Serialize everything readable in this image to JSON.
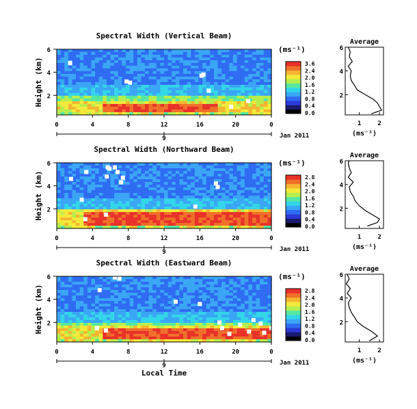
{
  "chart_data": {
    "type": "heatmap",
    "panels": [
      {
        "title": "Spectral Width (Vertical Beam)",
        "ylabel": "Height (km)",
        "ylim": [
          0.3,
          6
        ],
        "yticks": [
          "6",
          "4",
          "2"
        ],
        "ytick_values": [
          6,
          4,
          2
        ],
        "xticks": [
          "0",
          "4",
          "8",
          "12",
          "16",
          "20",
          "0"
        ],
        "xtick_values": [
          0,
          4,
          8,
          12,
          16,
          20,
          24
        ],
        "date_tick": "9",
        "date_label": "Jan 2011",
        "colorbar_unit": "(ms⁻¹)",
        "colorbar_ticks": [
          "3.6",
          "2.4",
          "2.0",
          "1.6",
          "1.2",
          "0.8",
          "0.4",
          "0.0"
        ],
        "avg_title": "Average",
        "avg_xticks": [
          "1",
          "2"
        ],
        "avg_xlabel": "(ms⁻¹)",
        "avg_yticks": [
          "6",
          "4",
          "2"
        ],
        "bright_band": {
          "start": 5,
          "end": 18,
          "height": 1.3
        },
        "gaps": [
          [
            1.5,
            4.8
          ],
          [
            7.8,
            3.2
          ],
          [
            8.2,
            3.1
          ],
          [
            16.2,
            3.7
          ],
          [
            16.4,
            3.8
          ],
          [
            17.0,
            2.4
          ],
          [
            19.5,
            1.0
          ],
          [
            21.4,
            1.5
          ]
        ],
        "average_profile": [
          {
            "h": 0.4,
            "v": 1.6
          },
          {
            "h": 0.7,
            "v": 2.1
          },
          {
            "h": 1.0,
            "v": 2.0
          },
          {
            "h": 1.3,
            "v": 1.9
          },
          {
            "h": 1.6,
            "v": 1.7
          },
          {
            "h": 2.0,
            "v": 1.3
          },
          {
            "h": 2.4,
            "v": 0.9
          },
          {
            "h": 2.8,
            "v": 0.75
          },
          {
            "h": 3.2,
            "v": 0.6
          },
          {
            "h": 3.6,
            "v": 0.55
          },
          {
            "h": 4.0,
            "v": 0.6
          },
          {
            "h": 4.4,
            "v": 0.45
          },
          {
            "h": 4.8,
            "v": 0.65
          },
          {
            "h": 5.2,
            "v": 0.5
          },
          {
            "h": 5.6,
            "v": 0.55
          },
          {
            "h": 6.0,
            "v": 0.45
          }
        ]
      },
      {
        "title": "Spectral Width (Northward Beam)",
        "ylabel": "Height (km)",
        "ylim": [
          0.3,
          6
        ],
        "yticks": [
          "6",
          "4",
          "2"
        ],
        "ytick_values": [
          6,
          4,
          2
        ],
        "xticks": [
          "0",
          "4",
          "8",
          "12",
          "16",
          "20",
          "0"
        ],
        "xtick_values": [
          0,
          4,
          8,
          12,
          16,
          20,
          24
        ],
        "date_tick": "9",
        "date_label": "Jan 2011",
        "colorbar_unit": "(ms⁻¹)",
        "colorbar_ticks": [
          "2.8",
          "2.4",
          "2.0",
          "1.6",
          "1.2",
          "0.8",
          "0.4",
          "0.0"
        ],
        "avg_title": "Average",
        "avg_xticks": [
          "1",
          "2"
        ],
        "avg_xlabel": "(ms⁻¹)",
        "avg_yticks": [
          "6",
          "4",
          "2"
        ],
        "bright_band": {
          "start": 3,
          "end": 24,
          "height": 1.7
        },
        "gaps": [
          [
            1.6,
            4.6
          ],
          [
            3.3,
            5.2
          ],
          [
            5.7,
            5.6
          ],
          [
            5.9,
            5.5
          ],
          [
            6.5,
            5.6
          ],
          [
            6.8,
            5.2
          ],
          [
            7.4,
            4.7
          ],
          [
            7.2,
            4.3
          ],
          [
            5.6,
            4.8
          ],
          [
            2.8,
            2.8
          ],
          [
            5.5,
            1.5
          ],
          [
            17.8,
            4.2
          ],
          [
            18.0,
            3.9
          ],
          [
            15.5,
            2.2
          ],
          [
            3.2,
            1.1
          ]
        ],
        "average_profile": [
          {
            "h": 0.5,
            "v": 1.4
          },
          {
            "h": 0.8,
            "v": 1.9
          },
          {
            "h": 1.1,
            "v": 2.0
          },
          {
            "h": 1.4,
            "v": 1.7
          },
          {
            "h": 1.8,
            "v": 1.3
          },
          {
            "h": 2.2,
            "v": 1.0
          },
          {
            "h": 2.6,
            "v": 0.8
          },
          {
            "h": 3.0,
            "v": 0.7
          },
          {
            "h": 3.4,
            "v": 0.55
          },
          {
            "h": 3.8,
            "v": 0.5
          },
          {
            "h": 4.2,
            "v": 0.7
          },
          {
            "h": 4.6,
            "v": 0.45
          },
          {
            "h": 5.0,
            "v": 0.6
          },
          {
            "h": 5.4,
            "v": 0.5
          },
          {
            "h": 5.8,
            "v": 0.45
          },
          {
            "h": 6.0,
            "v": 0.5
          }
        ]
      },
      {
        "title": "Spectral Width (Eastward Beam)",
        "ylabel": "Height (km)",
        "ylim": [
          0.3,
          6
        ],
        "yticks": [
          "6",
          "4",
          "2"
        ],
        "ytick_values": [
          6,
          4,
          2
        ],
        "xticks": [
          "0",
          "4",
          "8",
          "12",
          "16",
          "20",
          "0"
        ],
        "xtick_values": [
          0,
          4,
          8,
          12,
          16,
          20,
          24
        ],
        "date_tick": "9",
        "date_label": "Jan 2011",
        "xlabel": "Local Time",
        "colorbar_unit": "(ms⁻¹)",
        "colorbar_ticks": [
          "2.8",
          "2.4",
          "2.0",
          "1.6",
          "1.2",
          "0.8",
          "0.4",
          "0.0"
        ],
        "avg_title": "Average",
        "avg_xticks": [
          "1",
          "2"
        ],
        "avg_xlabel": "(ms⁻¹)",
        "avg_yticks": [
          "6",
          "4",
          "2"
        ],
        "bright_band": {
          "start": 5,
          "end": 24,
          "height": 1.4
        },
        "gaps": [
          [
            6.5,
            5.9
          ],
          [
            7.0,
            5.8
          ],
          [
            4.8,
            4.8
          ],
          [
            13.3,
            3.8
          ],
          [
            16.0,
            3.6
          ],
          [
            4.5,
            1.5
          ],
          [
            5.5,
            1.3
          ],
          [
            18.2,
            2.0
          ],
          [
            18.5,
            1.5
          ],
          [
            19.3,
            1.0
          ],
          [
            20.5,
            1.8
          ],
          [
            21.5,
            1.2
          ],
          [
            22.8,
            1.9
          ],
          [
            23.2,
            1.1
          ],
          [
            22.0,
            2.2
          ],
          [
            24.0,
            1.5
          ]
        ],
        "average_profile": [
          {
            "h": 0.4,
            "v": 1.5
          },
          {
            "h": 0.8,
            "v": 1.9
          },
          {
            "h": 1.2,
            "v": 1.6
          },
          {
            "h": 1.6,
            "v": 1.2
          },
          {
            "h": 2.0,
            "v": 0.9
          },
          {
            "h": 2.4,
            "v": 0.75
          },
          {
            "h": 2.8,
            "v": 0.6
          },
          {
            "h": 3.2,
            "v": 0.5
          },
          {
            "h": 3.6,
            "v": 0.45
          },
          {
            "h": 4.0,
            "v": 0.6
          },
          {
            "h": 4.4,
            "v": 0.4
          },
          {
            "h": 4.8,
            "v": 0.55
          },
          {
            "h": 5.2,
            "v": 0.35
          },
          {
            "h": 5.6,
            "v": 0.5
          },
          {
            "h": 6.0,
            "v": 0.4
          }
        ]
      }
    ],
    "colormap": [
      "#000000",
      "#1a1a6e",
      "#2b3bd8",
      "#2f6cf2",
      "#3aa6f5",
      "#33d6e8",
      "#56e8a0",
      "#b6ee4e",
      "#f2ea3a",
      "#f6b531",
      "#f0702a",
      "#e8322a"
    ]
  }
}
